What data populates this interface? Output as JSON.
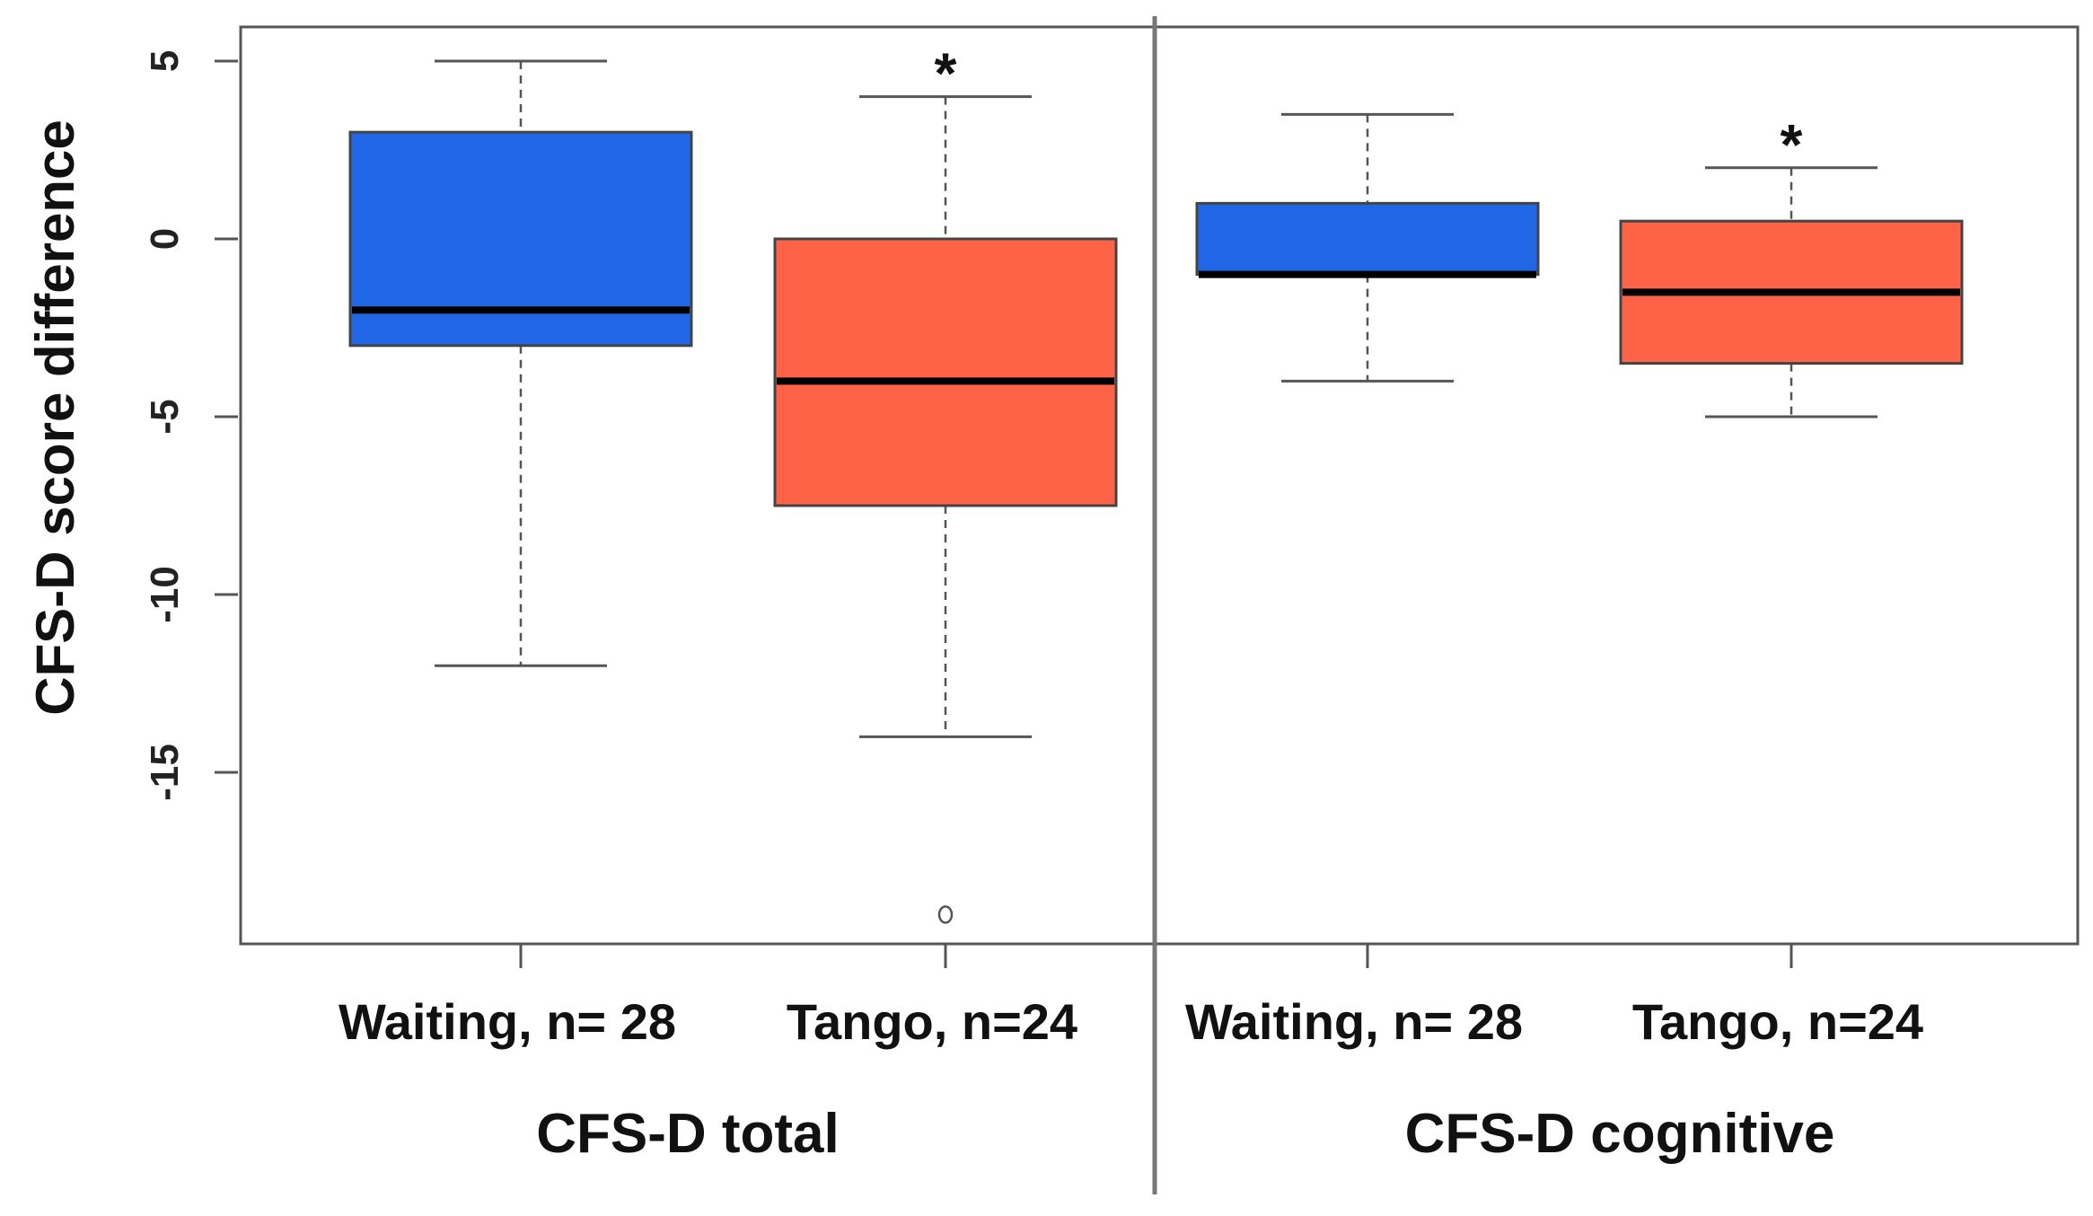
{
  "chart_data": {
    "type": "boxplot",
    "ylabel": "CFS-D score difference",
    "ylim": [
      -20,
      6
    ],
    "yticks": [
      5,
      0,
      -5,
      -10,
      -15
    ],
    "panels": [
      {
        "title": "CFS-D total",
        "groups": [
          {
            "label": "Waiting, n= 28",
            "color": "#1f67e6",
            "whisker_low": -12,
            "q1": -3,
            "median": -2,
            "q3": 3,
            "whisker_high": 5,
            "outliers": [],
            "significance": ""
          },
          {
            "label": "Tango, n=24",
            "color": "#ff6347",
            "whisker_low": -14,
            "q1": -7.5,
            "median": -4,
            "q3": 0,
            "whisker_high": 4,
            "outliers": [
              -19
            ],
            "significance": "*"
          }
        ]
      },
      {
        "title": "CFS-D cognitive",
        "groups": [
          {
            "label": "Waiting, n= 28",
            "color": "#1f67e6",
            "whisker_low": -4,
            "q1": -1,
            "median": -1,
            "q3": 1,
            "whisker_high": 3.5,
            "outliers": [],
            "significance": ""
          },
          {
            "label": "Tango, n=24",
            "color": "#ff6347",
            "whisker_low": -5,
            "q1": -3.5,
            "median": -1.5,
            "q3": 0.5,
            "whisker_high": 2,
            "outliers": [],
            "significance": "*"
          }
        ]
      }
    ]
  }
}
